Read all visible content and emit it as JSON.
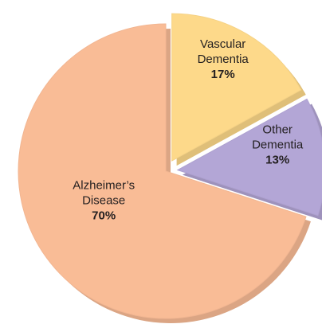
{
  "chart_data": {
    "type": "pie",
    "categories": [
      "Alzheimer’s Disease",
      "Vascular Dementia",
      "Other Dementia"
    ],
    "values": [
      70,
      17,
      13
    ],
    "value_labels": [
      "70%",
      "17%",
      "13%"
    ],
    "colors": [
      "#f9bc96",
      "#fdd98a",
      "#b3a6d6"
    ],
    "exploded": [
      false,
      true,
      true
    ]
  }
}
